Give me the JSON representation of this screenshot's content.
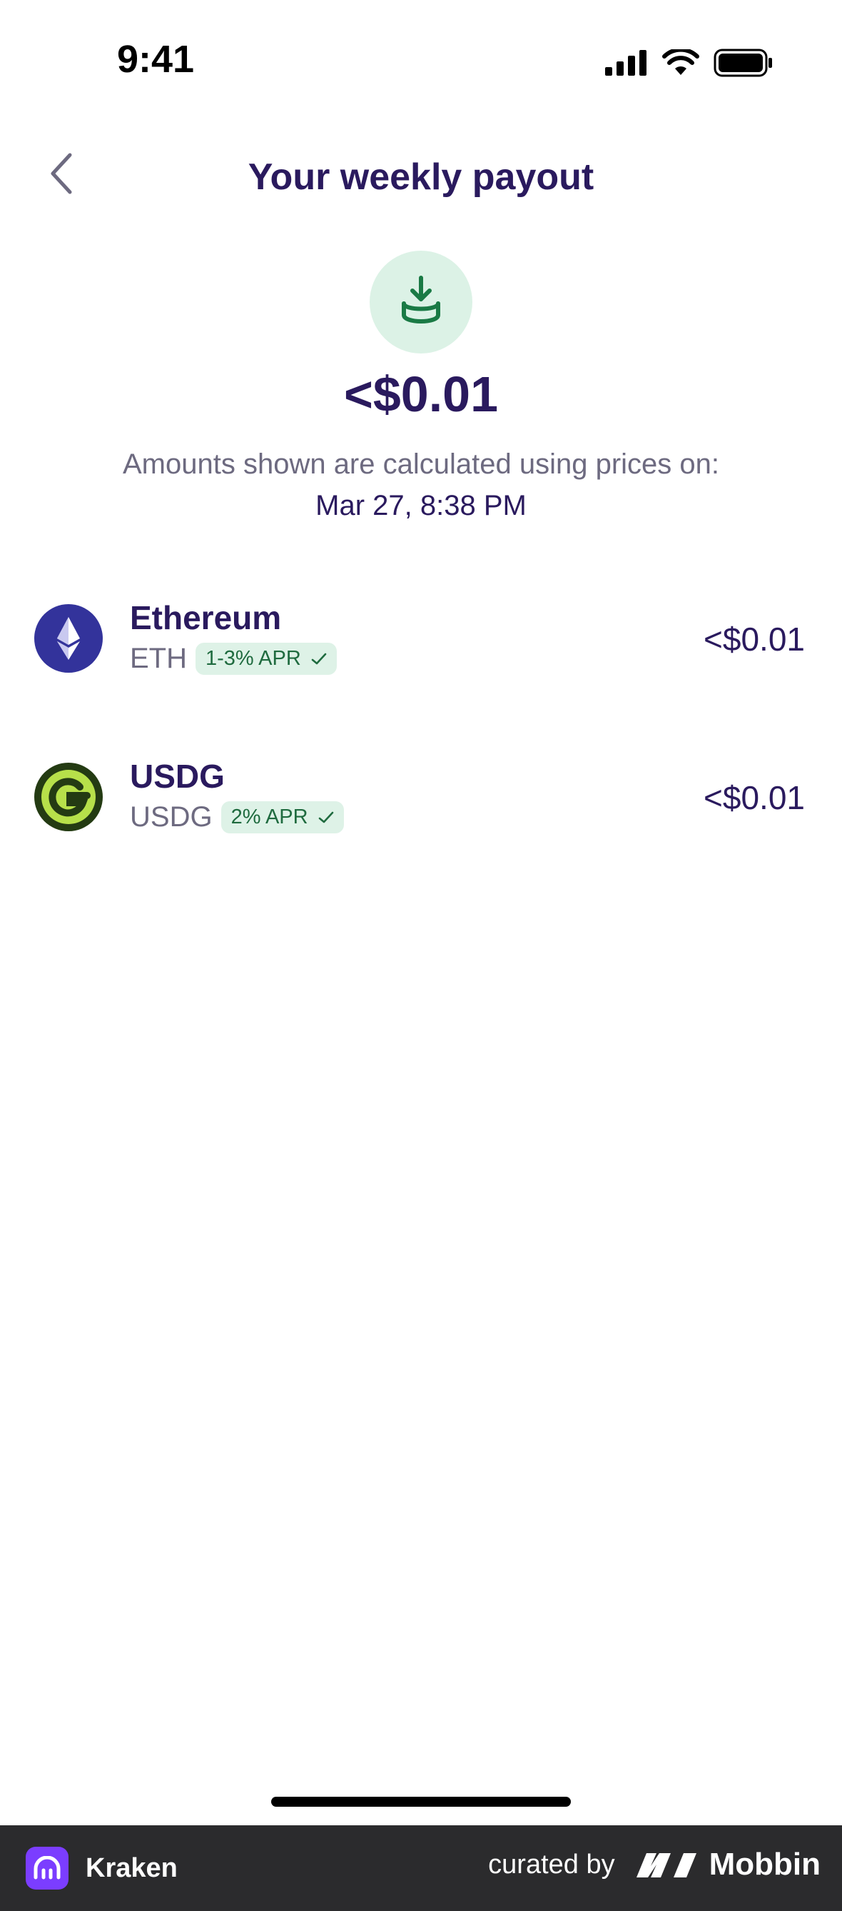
{
  "status_bar": {
    "time": "9:41"
  },
  "header": {
    "title": "Your weekly payout"
  },
  "payout": {
    "amount": "<$0.01",
    "note": "Amounts shown are calculated using prices on:",
    "date": "Mar 27, 8:38 PM"
  },
  "assets": [
    {
      "name": "Ethereum",
      "ticker": "ETH",
      "apr": "1-3% APR",
      "value": "<$0.01",
      "icon": "ethereum-logo"
    },
    {
      "name": "USDG",
      "ticker": "USDG",
      "apr": "2% APR",
      "value": "<$0.01",
      "icon": "usdg-logo"
    }
  ],
  "footer": {
    "app_name": "Kraken",
    "curated_by": "curated by",
    "brand": "Mobbin"
  },
  "colors": {
    "primary_text": "#2a1a5e",
    "secondary_text": "#6d6a80",
    "badge_bg": "#def2e7",
    "badge_text": "#1f6b3f",
    "accent_green": "#1a7a45"
  }
}
